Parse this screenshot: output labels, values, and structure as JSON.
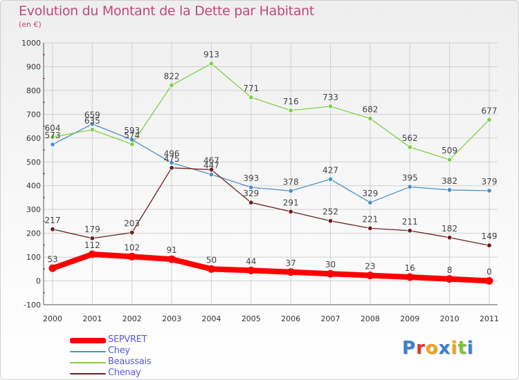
{
  "title": "Evolution du Montant de la Dette par Habitant",
  "subtitle": "(en €)",
  "logo_text": "Proxiti",
  "colors": {
    "title": "#c0487a",
    "grid": "#d0d0d0",
    "axis": "#555555",
    "axis_tick_mark": "#cc0000"
  },
  "chart_data": {
    "type": "line",
    "x": [
      "2000",
      "2001",
      "2002",
      "2003",
      "2004",
      "2005",
      "2006",
      "2007",
      "2008",
      "2009",
      "2010",
      "2011"
    ],
    "ylim": [
      -100,
      1000
    ],
    "yticks": [
      -100,
      0,
      100,
      200,
      300,
      400,
      500,
      600,
      700,
      800,
      900,
      1000
    ],
    "grid": true,
    "legend": "bottom-left",
    "series": [
      {
        "name": "SEPVRET",
        "color": "#ff0000",
        "values": [
          53,
          112,
          102,
          91,
          50,
          44,
          37,
          30,
          23,
          16,
          8,
          0
        ]
      },
      {
        "name": "Chey",
        "color": "#4a90c8",
        "values": [
          573,
          659,
          593,
          496,
          447,
          393,
          378,
          427,
          329,
          395,
          382,
          379
        ]
      },
      {
        "name": "Beaussais",
        "color": "#7ed048",
        "values": [
          604,
          635,
          574,
          822,
          913,
          771,
          716,
          733,
          682,
          562,
          509,
          677
        ]
      },
      {
        "name": "Chenay",
        "color": "#6b1f1f",
        "values": [
          217,
          179,
          203,
          475,
          467,
          329,
          291,
          252,
          221,
          211,
          182,
          149
        ]
      }
    ]
  }
}
